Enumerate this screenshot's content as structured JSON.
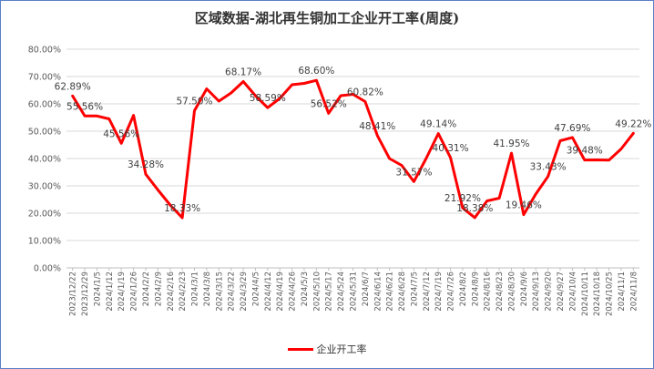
{
  "chart_data": {
    "type": "line",
    "title": "区域数据-湖北再生铜加工企业开工率(周度)",
    "xlabel": "",
    "ylabel": "",
    "ylim": [
      0,
      80
    ],
    "yticks": [
      "0.00%",
      "10.00%",
      "20.00%",
      "30.00%",
      "40.00%",
      "50.00%",
      "60.00%",
      "70.00%",
      "80.00%"
    ],
    "grid": true,
    "legend_position": "bottom",
    "x": [
      "2023/12/22",
      "2023/12/29",
      "2024/1/5",
      "2024/1/12",
      "2024/1/19",
      "2024/1/26",
      "2024/2/2",
      "2024/2/9",
      "2024/2/16",
      "2024/2/23",
      "2024/3/1",
      "2024/3/8",
      "2024/3/15",
      "2024/3/22",
      "2024/3/29",
      "2024/4/5",
      "2024/4/12",
      "2024/4/19",
      "2024/4/26",
      "2024/5/3",
      "2024/5/10",
      "2024/5/17",
      "2024/5/24",
      "2024/5/31",
      "2024/6/7",
      "2024/6/14",
      "2024/6/21",
      "2024/6/28",
      "2024/7/5",
      "2024/7/12",
      "2024/7/19",
      "2024/7/26",
      "2024/8/2",
      "2024/8/9",
      "2024/8/16",
      "2024/8/23",
      "2024/8/30",
      "2024/9/6",
      "2024/9/13",
      "2024/9/20",
      "2024/9/27",
      "2024/10/4",
      "2024/10/11",
      "2024/10/18",
      "2024/10/25",
      "2024/11/1",
      "2024/11/8"
    ],
    "series": [
      {
        "name": "企业开工率",
        "color": "#ff0000",
        "values": [
          62.89,
          55.56,
          55.56,
          54.5,
          45.56,
          55.8,
          34.28,
          28.5,
          23.0,
          18.33,
          57.5,
          65.5,
          61.0,
          64.0,
          68.17,
          63.0,
          58.59,
          62.0,
          67.0,
          67.5,
          68.6,
          56.52,
          63.0,
          63.5,
          60.82,
          48.41,
          40.0,
          37.5,
          31.57,
          40.0,
          49.14,
          40.31,
          21.92,
          18.38,
          24.5,
          25.5,
          41.95,
          19.46,
          27.0,
          33.43,
          46.5,
          47.69,
          39.48,
          39.5,
          39.4,
          43.5,
          49.22
        ]
      }
    ],
    "data_labels": [
      {
        "index": 0,
        "text": "62.89%"
      },
      {
        "index": 1,
        "text": "55.56%"
      },
      {
        "index": 4,
        "text": "45.56%"
      },
      {
        "index": 6,
        "text": "34.28%"
      },
      {
        "index": 9,
        "text": "18.33%"
      },
      {
        "index": 10,
        "text": "57.50%"
      },
      {
        "index": 14,
        "text": "68.17%"
      },
      {
        "index": 16,
        "text": "58.59%"
      },
      {
        "index": 20,
        "text": "68.60%"
      },
      {
        "index": 21,
        "text": "56.52%"
      },
      {
        "index": 24,
        "text": "60.82%"
      },
      {
        "index": 25,
        "text": "48.41%"
      },
      {
        "index": 28,
        "text": "31.57%"
      },
      {
        "index": 30,
        "text": "49.14%"
      },
      {
        "index": 31,
        "text": "40.31%"
      },
      {
        "index": 32,
        "text": "21.92%"
      },
      {
        "index": 33,
        "text": "18.38%"
      },
      {
        "index": 36,
        "text": "41.95%"
      },
      {
        "index": 37,
        "text": "19.46%"
      },
      {
        "index": 39,
        "text": "33.43%"
      },
      {
        "index": 41,
        "text": "47.69%"
      },
      {
        "index": 42,
        "text": "39.48%"
      },
      {
        "index": 46,
        "text": "49.22%"
      }
    ]
  }
}
